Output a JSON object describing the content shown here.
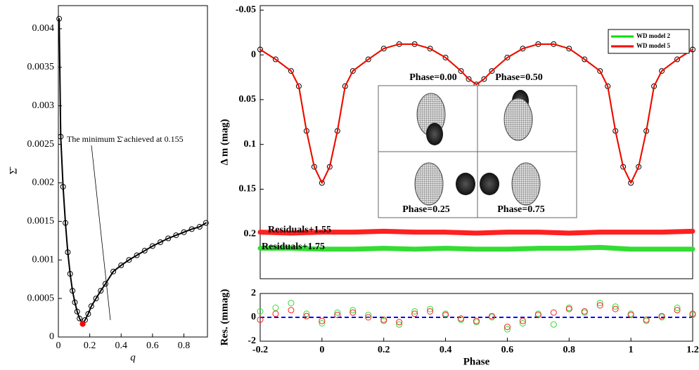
{
  "chart_data": [
    {
      "type": "line",
      "xlabel": "q",
      "ylabel": "Σ̄",
      "annotation": "The minimum Σ̄ achieved at 0.155",
      "xlim": [
        0,
        0.95
      ],
      "ylim": [
        0,
        0.0043
      ],
      "xticks": [
        0,
        0.2,
        0.4,
        0.6,
        0.8
      ],
      "yticks": [
        0,
        0.0005,
        0.001,
        0.0015,
        0.002,
        0.0025,
        0.003,
        0.0035,
        0.004
      ],
      "x": [
        0.005,
        0.015,
        0.03,
        0.045,
        0.06,
        0.075,
        0.09,
        0.105,
        0.12,
        0.135,
        0.155,
        0.17,
        0.19,
        0.21,
        0.24,
        0.27,
        0.3,
        0.35,
        0.4,
        0.45,
        0.5,
        0.55,
        0.6,
        0.65,
        0.7,
        0.75,
        0.8,
        0.85,
        0.9,
        0.94
      ],
      "series": [
        {
          "color": "#000000",
          "marker": "open-circle",
          "line": true,
          "values": [
            0.00413,
            0.0026,
            0.00195,
            0.00148,
            0.0011,
            0.00082,
            0.0006,
            0.00045,
            0.00033,
            0.00024,
            0.00017,
            0.00022,
            0.0003,
            0.0004,
            0.0005,
            0.0006,
            0.00069,
            0.00085,
            0.00093,
            0.001,
            0.00106,
            0.00112,
            0.00118,
            0.00123,
            0.00128,
            0.00132,
            0.00136,
            0.0014,
            0.00143,
            0.00148
          ]
        }
      ],
      "highlight": {
        "x": 0.155,
        "value": 0.00017,
        "color": "#ff0000"
      }
    },
    {
      "type": "line",
      "ylabel": "Δ m (mag)",
      "reverse_y": true,
      "xlim": [
        -0.2,
        1.2
      ],
      "ylim": [
        -0.055,
        0.25
      ],
      "yticks": [
        -0.05,
        0,
        0.05,
        0.1,
        0.15,
        0.2
      ],
      "annotations": [
        "Residuals+1.55",
        "Residuals+1.75"
      ],
      "inset_labels": [
        "Phase=0.00",
        "Phase=0.50",
        "Phase=0.25",
        "Phase=0.75"
      ],
      "legend": "upper right",
      "x": [
        -0.2,
        -0.15,
        -0.1,
        -0.075,
        -0.05,
        -0.025,
        0,
        0.025,
        0.05,
        0.075,
        0.1,
        0.15,
        0.2,
        0.25,
        0.3,
        0.35,
        0.4,
        0.45,
        0.475,
        0.5,
        0.525,
        0.55,
        0.6,
        0.65,
        0.7,
        0.75,
        0.8,
        0.85,
        0.9,
        0.925,
        0.95,
        0.975,
        1.0,
        1.025,
        1.05,
        1.075,
        1.1,
        1.15,
        1.2
      ],
      "series": [
        {
          "color": "#000000",
          "marker": "open-circle",
          "values": [
            -0.006,
            0.005,
            0.018,
            0.035,
            0.085,
            0.125,
            0.143,
            0.125,
            0.085,
            0.035,
            0.018,
            0.005,
            -0.007,
            -0.012,
            -0.012,
            -0.007,
            0.003,
            0.018,
            0.027,
            0.033,
            0.027,
            0.018,
            0.003,
            -0.007,
            -0.012,
            -0.012,
            -0.007,
            0.005,
            0.018,
            0.035,
            0.085,
            0.125,
            0.143,
            0.125,
            0.085,
            0.035,
            0.018,
            0.005,
            -0.006
          ]
        },
        {
          "name": "WD model 2",
          "color": "#00dd00",
          "line": true,
          "values": [
            -0.006,
            0.005,
            0.018,
            0.035,
            0.085,
            0.125,
            0.143,
            0.125,
            0.085,
            0.035,
            0.018,
            0.005,
            -0.007,
            -0.012,
            -0.012,
            -0.007,
            0.003,
            0.018,
            0.027,
            0.033,
            0.027,
            0.018,
            0.003,
            -0.007,
            -0.012,
            -0.012,
            -0.007,
            0.005,
            0.018,
            0.035,
            0.085,
            0.125,
            0.143,
            0.125,
            0.085,
            0.035,
            0.018,
            0.005,
            -0.006
          ]
        },
        {
          "name": "WD model 5",
          "color": "#ff0000",
          "line": true,
          "values": [
            -0.006,
            0.005,
            0.018,
            0.035,
            0.085,
            0.125,
            0.143,
            0.125,
            0.085,
            0.035,
            0.018,
            0.005,
            -0.007,
            -0.012,
            -0.012,
            -0.007,
            0.003,
            0.018,
            0.027,
            0.033,
            0.027,
            0.018,
            0.003,
            -0.007,
            -0.012,
            -0.012,
            -0.007,
            0.005,
            0.018,
            0.035,
            0.085,
            0.125,
            0.143,
            0.125,
            0.085,
            0.035,
            0.018,
            0.005,
            -0.006
          ]
        },
        {
          "color": "#ff2020",
          "band": true,
          "x": [
            -0.2,
            -0.1,
            0,
            0.1,
            0.2,
            0.3,
            0.4,
            0.5,
            0.6,
            0.7,
            0.8,
            0.9,
            1.0,
            1.1,
            1.2
          ],
          "values": [
            0.198,
            0.199,
            0.198,
            0.198,
            0.197,
            0.198,
            0.198,
            0.199,
            0.198,
            0.198,
            0.199,
            0.198,
            0.198,
            0.198,
            0.197
          ]
        },
        {
          "color": "#33dd33",
          "band": true,
          "x": [
            -0.2,
            -0.1,
            0,
            0.1,
            0.2,
            0.3,
            0.4,
            0.5,
            0.6,
            0.7,
            0.8,
            0.9,
            1.0,
            1.1,
            1.2
          ],
          "values": [
            0.216,
            0.216,
            0.217,
            0.217,
            0.216,
            0.217,
            0.216,
            0.217,
            0.217,
            0.216,
            0.216,
            0.215,
            0.217,
            0.217,
            0.217
          ]
        }
      ]
    },
    {
      "type": "scatter",
      "xlabel": "Phase",
      "ylabel": "Res. (mmag)",
      "xlim": [
        -0.2,
        1.2
      ],
      "ylim": [
        -2,
        2
      ],
      "xticks": [
        -0.2,
        0,
        0.2,
        0.4,
        0.6,
        0.8,
        1,
        1.2
      ],
      "yticks": [
        -2,
        0,
        2
      ],
      "hline": {
        "value": 0,
        "color": "#0000ff"
      },
      "x": [
        -0.2,
        -0.15,
        -0.1,
        -0.05,
        0,
        0.05,
        0.1,
        0.15,
        0.2,
        0.25,
        0.3,
        0.35,
        0.4,
        0.45,
        0.5,
        0.55,
        0.6,
        0.65,
        0.7,
        0.75,
        0.8,
        0.85,
        0.9,
        0.95,
        1.0,
        1.05,
        1.1,
        1.15,
        1.2
      ],
      "series": [
        {
          "color": "#33dd33",
          "marker": "open-circle",
          "values": [
            0.5,
            0.8,
            1.2,
            0.3,
            -0.5,
            0.4,
            0.6,
            0.2,
            -0.3,
            -0.6,
            0.5,
            0.7,
            0.3,
            -0.2,
            -0.4,
            0.0,
            -1.0,
            -0.5,
            0.3,
            -0.6,
            0.8,
            0.4,
            1.2,
            0.9,
            0.3,
            -0.3,
            0.0,
            0.8,
            0.2
          ]
        },
        {
          "color": "#ff2020",
          "marker": "open-circle",
          "values": [
            -0.2,
            0.3,
            0.6,
            0.1,
            -0.3,
            0.2,
            0.4,
            0.0,
            -0.2,
            -0.4,
            0.3,
            0.5,
            0.2,
            -0.1,
            -0.3,
            0.1,
            -0.8,
            -0.3,
            0.2,
            0.4,
            0.7,
            0.5,
            1.0,
            0.7,
            0.2,
            -0.2,
            0.1,
            0.6,
            0.3
          ]
        }
      ]
    }
  ]
}
